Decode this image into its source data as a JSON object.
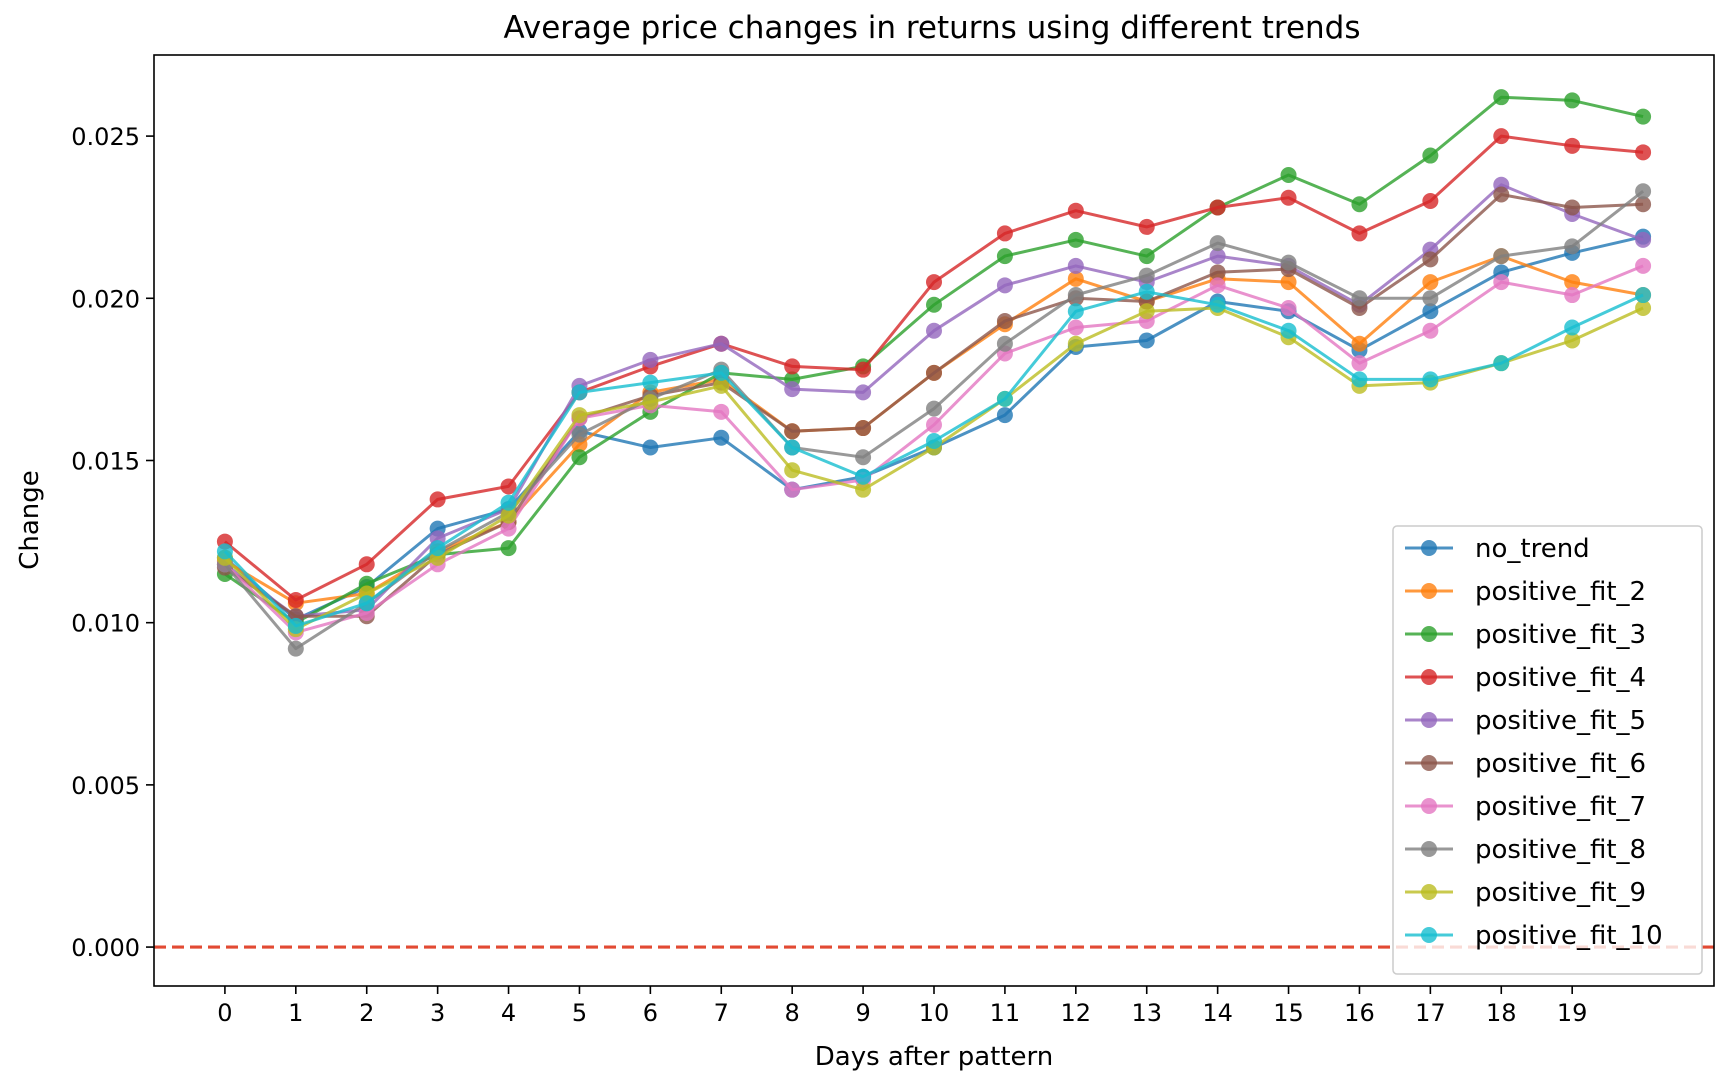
{
  "chart_data": {
    "type": "line",
    "title": "Average price changes in returns using different trends",
    "xlabel": "Days after pattern",
    "ylabel": "Change",
    "x": [
      0,
      1,
      2,
      3,
      4,
      5,
      6,
      7,
      8,
      9,
      10,
      11,
      12,
      13,
      14,
      15,
      16,
      17,
      18,
      19,
      20
    ],
    "xticks": [
      "0",
      "1",
      "2",
      "3",
      "4",
      "5",
      "6",
      "7",
      "8",
      "9",
      "10",
      "11",
      "12",
      "13",
      "14",
      "15",
      "16",
      "17",
      "18",
      "19"
    ],
    "yticks": [
      "0.000",
      "0.005",
      "0.010",
      "0.015",
      "0.020",
      "0.025"
    ],
    "xlim": [
      -1,
      21
    ],
    "ylim": [
      -0.0012,
      0.0275
    ],
    "grid": false,
    "legend_position": "lower-right",
    "reference_line": {
      "y": 0.0,
      "style": "dashed",
      "color": "#e24a33"
    },
    "series": [
      {
        "name": "no_trend",
        "color": "#1f77b4",
        "values": [
          0.012,
          0.0101,
          0.0111,
          0.0129,
          0.0135,
          0.0159,
          0.0154,
          0.0157,
          0.0141,
          0.0145,
          0.0154,
          0.0164,
          0.0185,
          0.0187,
          0.0199,
          0.0196,
          0.0184,
          0.0196,
          0.0208,
          0.0214,
          0.0219
        ]
      },
      {
        "name": "positive_fit_2",
        "color": "#ff7f0e",
        "values": [
          0.0119,
          0.0106,
          0.0109,
          0.0122,
          0.0131,
          0.0155,
          0.0171,
          0.0175,
          0.0159,
          0.016,
          0.0177,
          0.0192,
          0.0206,
          0.0199,
          0.0206,
          0.0205,
          0.0186,
          0.0205,
          0.0213,
          0.0205,
          0.0201
        ]
      },
      {
        "name": "positive_fit_3",
        "color": "#2ca02c",
        "values": [
          0.0115,
          0.01,
          0.0112,
          0.0121,
          0.0123,
          0.0151,
          0.0165,
          0.0177,
          0.0175,
          0.0179,
          0.0198,
          0.0213,
          0.0218,
          0.0213,
          0.0228,
          0.0238,
          0.0229,
          0.0244,
          0.0262,
          0.0261,
          0.0256
        ]
      },
      {
        "name": "positive_fit_4",
        "color": "#d62728",
        "values": [
          0.0125,
          0.0107,
          0.0118,
          0.0138,
          0.0142,
          0.0171,
          0.0179,
          0.0186,
          0.0179,
          0.0178,
          0.0205,
          0.022,
          0.0227,
          0.0222,
          0.0228,
          0.0231,
          0.022,
          0.023,
          0.025,
          0.0247,
          0.0245
        ]
      },
      {
        "name": "positive_fit_5",
        "color": "#9467bd",
        "values": [
          0.0118,
          0.0102,
          0.0104,
          0.0126,
          0.0135,
          0.0173,
          0.0181,
          0.0186,
          0.0172,
          0.0171,
          0.019,
          0.0204,
          0.021,
          0.0205,
          0.0213,
          0.021,
          0.0198,
          0.0215,
          0.0235,
          0.0226,
          0.0218
        ]
      },
      {
        "name": "positive_fit_6",
        "color": "#8c564b",
        "values": [
          0.0117,
          0.0102,
          0.0102,
          0.0121,
          0.0131,
          0.0163,
          0.017,
          0.0174,
          0.0159,
          0.016,
          0.0177,
          0.0193,
          0.02,
          0.0199,
          0.0208,
          0.0209,
          0.0197,
          0.0212,
          0.0232,
          0.0228,
          0.0229
        ]
      },
      {
        "name": "positive_fit_7",
        "color": "#e377c2",
        "values": [
          0.0118,
          0.0097,
          0.0103,
          0.0118,
          0.0129,
          0.0163,
          0.0167,
          0.0165,
          0.0141,
          0.0144,
          0.0161,
          0.0183,
          0.0191,
          0.0193,
          0.0204,
          0.0197,
          0.018,
          0.019,
          0.0205,
          0.0201,
          0.021
        ]
      },
      {
        "name": "positive_fit_8",
        "color": "#7f7f7f",
        "values": [
          0.0118,
          0.0092,
          0.0106,
          0.0122,
          0.0134,
          0.0158,
          0.0169,
          0.0178,
          0.0154,
          0.0151,
          0.0166,
          0.0186,
          0.0201,
          0.0207,
          0.0217,
          0.0211,
          0.02,
          0.02,
          0.0213,
          0.0216,
          0.0233
        ]
      },
      {
        "name": "positive_fit_9",
        "color": "#bcbd22",
        "values": [
          0.012,
          0.0098,
          0.0109,
          0.012,
          0.0133,
          0.0164,
          0.0168,
          0.0173,
          0.0147,
          0.0141,
          0.0154,
          0.0169,
          0.0186,
          0.0196,
          0.0197,
          0.0188,
          0.0173,
          0.0174,
          0.018,
          0.0187,
          0.0197
        ]
      },
      {
        "name": "positive_fit_10",
        "color": "#17becf",
        "values": [
          0.0122,
          0.0099,
          0.0106,
          0.0123,
          0.0137,
          0.0171,
          0.0174,
          0.0177,
          0.0154,
          0.0145,
          0.0156,
          0.0169,
          0.0196,
          0.0202,
          0.0198,
          0.019,
          0.0175,
          0.0175,
          0.018,
          0.0191,
          0.0201
        ]
      }
    ]
  }
}
